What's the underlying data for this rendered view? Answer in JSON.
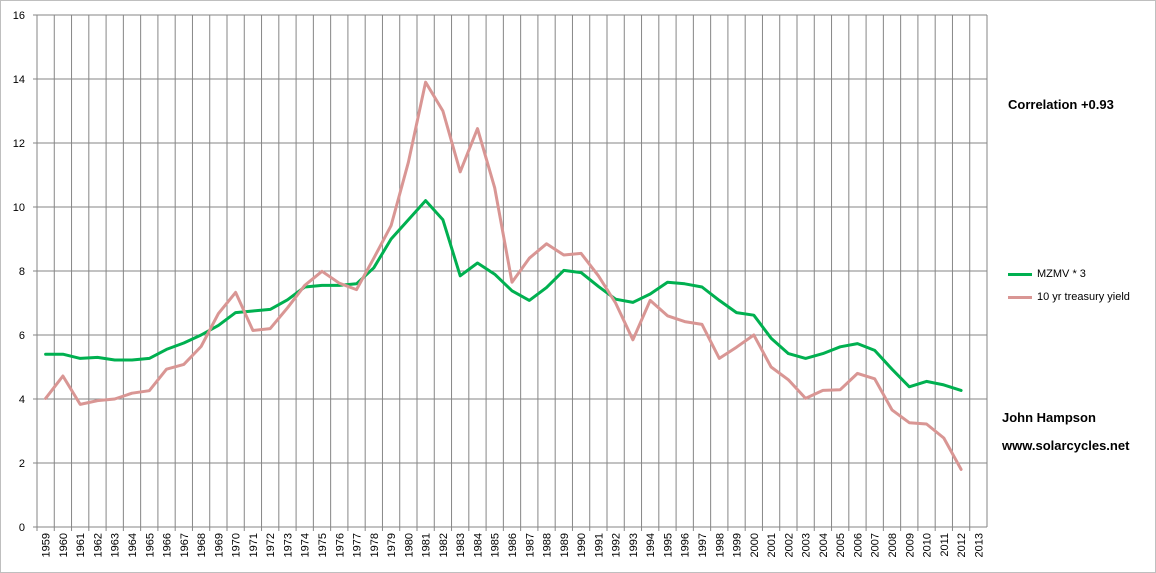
{
  "chart_data": {
    "type": "line",
    "title": "",
    "xlabel": "",
    "ylabel": "",
    "ylim": [
      0,
      16
    ],
    "yticks": [
      0,
      2,
      4,
      6,
      8,
      10,
      12,
      14,
      16
    ],
    "grid": true,
    "legend_position": "right",
    "categories": [
      "1959",
      "1960",
      "1961",
      "1962",
      "1963",
      "1964",
      "1965",
      "1966",
      "1967",
      "1968",
      "1969",
      "1970",
      "1971",
      "1972",
      "1973",
      "1974",
      "1975",
      "1976",
      "1977",
      "1978",
      "1979",
      "1980",
      "1981",
      "1982",
      "1983",
      "1984",
      "1985",
      "1986",
      "1987",
      "1988",
      "1989",
      "1990",
      "1991",
      "1992",
      "1993",
      "1994",
      "1995",
      "1996",
      "1997",
      "1998",
      "1999",
      "2000",
      "2001",
      "2002",
      "2003",
      "2004",
      "2005",
      "2006",
      "2007",
      "2008",
      "2009",
      "2010",
      "2011",
      "2012",
      "2013"
    ],
    "series": [
      {
        "name": "MZMV * 3",
        "color": "#00b050",
        "values": [
          5.4,
          5.4,
          5.27,
          5.3,
          5.22,
          5.22,
          5.27,
          5.55,
          5.75,
          6.0,
          6.3,
          6.7,
          6.75,
          6.8,
          7.1,
          7.5,
          7.55,
          7.55,
          7.6,
          8.1,
          9.0,
          9.6,
          10.2,
          9.6,
          7.85,
          8.25,
          7.9,
          7.38,
          7.08,
          7.48,
          8.02,
          7.95,
          7.52,
          7.12,
          7.02,
          7.28,
          7.65,
          7.6,
          7.5,
          7.08,
          6.7,
          6.62,
          5.9,
          5.42,
          5.27,
          5.42,
          5.63,
          5.73,
          5.52,
          4.93,
          4.38,
          4.55,
          4.44,
          4.27,
          null
        ]
      },
      {
        "name": "10 yr treasury yield",
        "color": "#d99694",
        "values": [
          4.02,
          4.72,
          3.83,
          3.95,
          4.0,
          4.18,
          4.26,
          4.93,
          5.08,
          5.64,
          6.67,
          7.33,
          6.14,
          6.2,
          6.85,
          7.55,
          7.99,
          7.62,
          7.42,
          8.4,
          9.42,
          11.4,
          13.9,
          13.0,
          11.1,
          12.45,
          10.6,
          7.65,
          8.4,
          8.85,
          8.5,
          8.55,
          7.85,
          7.0,
          5.85,
          7.08,
          6.6,
          6.42,
          6.33,
          5.27,
          5.62,
          6.0,
          5.0,
          4.6,
          4.02,
          4.27,
          4.29,
          4.8,
          4.63,
          3.66,
          3.26,
          3.22,
          2.78,
          1.8,
          null
        ]
      }
    ]
  },
  "annotations": {
    "correlation": "Correlation +0.93",
    "author": "John Hampson",
    "website": "www.solarcycles.net"
  }
}
